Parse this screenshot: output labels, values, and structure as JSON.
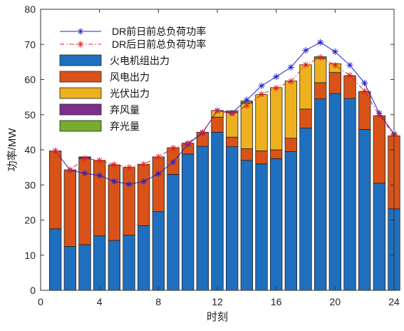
{
  "chart_data": {
    "type": "bar",
    "stacked": true,
    "xlabel": "时刻",
    "ylabel": "功率/MW",
    "xlim": [
      0,
      24
    ],
    "ylim": [
      0,
      80
    ],
    "xticks": [
      0,
      4,
      8,
      12,
      16,
      20,
      24
    ],
    "yticks": [
      0,
      10,
      20,
      30,
      40,
      50,
      60,
      70,
      80
    ],
    "grid": false,
    "legend_position": "top-left",
    "x": [
      1,
      2,
      3,
      4,
      5,
      6,
      7,
      8,
      9,
      10,
      11,
      12,
      13,
      14,
      15,
      16,
      17,
      18,
      19,
      20,
      21,
      22,
      23,
      24
    ],
    "series": [
      {
        "name": "火电机组出力",
        "kind": "bar",
        "color": "#1f6fbf",
        "values": [
          17.5,
          12.5,
          13,
          15.5,
          14.2,
          15.7,
          18.4,
          22.4,
          33,
          38.8,
          41,
          45,
          40.9,
          37,
          36,
          37.5,
          39.5,
          46.2,
          54.5,
          56,
          54.6,
          45.8,
          30.5,
          23.2
        ]
      },
      {
        "name": "风电出力",
        "kind": "bar",
        "color": "#d95319",
        "values": [
          22.2,
          21.8,
          24.5,
          21.5,
          21.5,
          19.3,
          17.5,
          15.6,
          7.6,
          3.1,
          4,
          4.3,
          2.7,
          3.3,
          3.7,
          2.5,
          3.8,
          5.4,
          4.6,
          6,
          6.5,
          10.8,
          19.2,
          20.8
        ]
      },
      {
        "name": "光伏出力",
        "kind": "bar",
        "color": "#edb120",
        "values": [
          0,
          0,
          0,
          0,
          0,
          0,
          0,
          0,
          0,
          0,
          0,
          1.9,
          7,
          13,
          16,
          17.7,
          16.3,
          12.6,
          6.9,
          2.5,
          0,
          0,
          0,
          0
        ]
      },
      {
        "name": "弃风量",
        "kind": "bar",
        "color": "#7e2f8e",
        "values": [
          0,
          0,
          0.5,
          0,
          0,
          0,
          0,
          0,
          0,
          0,
          0,
          0,
          0,
          0,
          0,
          0,
          0,
          0,
          0,
          0,
          0,
          0,
          0,
          0
        ]
      },
      {
        "name": "弃光量",
        "kind": "bar",
        "color": "#77ac30",
        "values": [
          0,
          0,
          0,
          0,
          0,
          0,
          0,
          0,
          0,
          0,
          0,
          0,
          0.5,
          0.6,
          0,
          0,
          0,
          0,
          0.5,
          0,
          0,
          0,
          0,
          0
        ]
      },
      {
        "name": "DR前日前总负荷功率",
        "kind": "line",
        "color": "#2020d0",
        "linestyle": "solid",
        "marker": "*",
        "values": [
          39.7,
          34.2,
          33.3,
          32.7,
          31,
          30.2,
          31,
          33.2,
          36.5,
          41.6,
          44.8,
          51.2,
          50.5,
          54.2,
          58.2,
          60.8,
          63.5,
          68.3,
          70.6,
          67.9,
          64.1,
          59,
          50.4,
          44.5
        ]
      },
      {
        "name": "DR后日前总负荷功率",
        "kind": "line",
        "color": "#e02020",
        "linestyle": "dashdot",
        "marker": "*",
        "values": [
          39.7,
          34.3,
          37.5,
          37,
          35.8,
          35,
          35.9,
          38,
          40.5,
          41.9,
          45,
          51.1,
          50.3,
          52.6,
          55.8,
          57.6,
          59.5,
          64.2,
          66.3,
          64.1,
          61.2,
          56.7,
          49.8,
          44.3
        ]
      }
    ]
  }
}
